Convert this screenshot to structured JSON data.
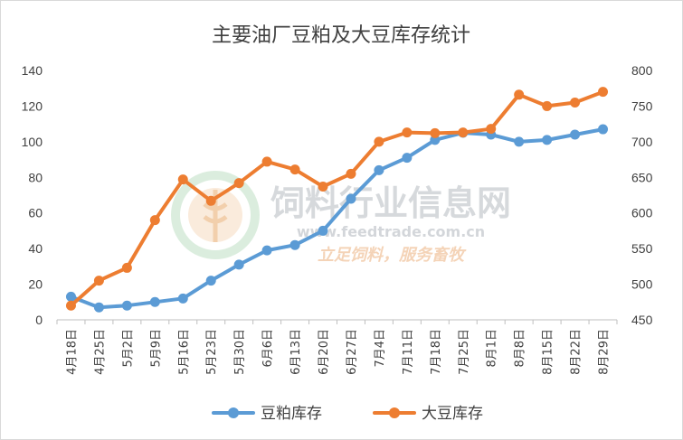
{
  "chart_data": {
    "type": "line",
    "title": "主要油厂豆粕及大豆库存统计",
    "categories": [
      "4月18日",
      "4月25日",
      "5月2日",
      "5月9日",
      "5月16日",
      "5月23日",
      "5月30日",
      "6月6日",
      "6月13日",
      "6月20日",
      "6月27日",
      "7月4日",
      "7月11日",
      "7月18日",
      "7月25日",
      "8月1日",
      "8月8日",
      "8月15日",
      "8月22日",
      "8月29日"
    ],
    "series": [
      {
        "name": "豆粕库存",
        "axis": "left",
        "color": "#5B9BD5",
        "values": [
          13,
          7,
          8,
          10,
          12,
          22,
          31,
          39,
          42,
          50,
          68,
          84,
          91,
          101,
          105,
          104,
          100,
          101,
          104,
          107
        ]
      },
      {
        "name": "大豆库存",
        "axis": "right",
        "color": "#ED7D31",
        "values": [
          470,
          505,
          523,
          590,
          647,
          617,
          642,
          672,
          661,
          637,
          655,
          700,
          713,
          712,
          713,
          718,
          766,
          750,
          755,
          770
        ]
      }
    ],
    "y_left": {
      "min": 0,
      "max": 140,
      "ticks": [
        0,
        20,
        40,
        60,
        80,
        100,
        120,
        140
      ]
    },
    "y_right": {
      "min": 450,
      "max": 800,
      "ticks": [
        450,
        500,
        550,
        600,
        650,
        700,
        750,
        800
      ]
    },
    "grid": false,
    "legend_position": "bottom"
  },
  "watermark": {
    "title": "饲料行业信息网",
    "url": "www.feedtrade.com.cn",
    "slogan": "立足饲料，服务畜牧"
  }
}
